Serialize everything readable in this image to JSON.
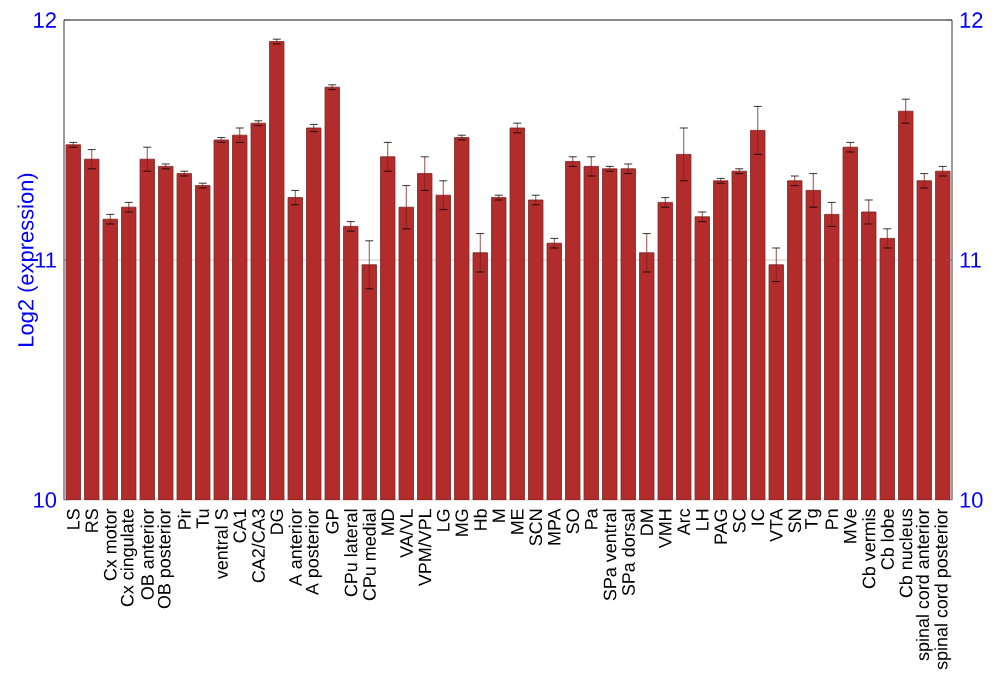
{
  "chart_data": {
    "type": "bar",
    "ylabel": "Log2 (expression)",
    "categories": [
      "LS",
      "RS",
      "Cx motor",
      "Cx cingulate",
      "OB anterior",
      "OB posterior",
      "Pir",
      "Tu",
      "ventral S",
      "CA1",
      "CA2/CA3",
      "DG",
      "A anterior",
      "A posterior",
      "GP",
      "CPu lateral",
      "CPu medial",
      "MD",
      "VA/VL",
      "VPM/VPL",
      "LG",
      "MG",
      "Hb",
      "M",
      "ME",
      "SCN",
      "MPA",
      "SO",
      "Pa",
      "SPa ventral",
      "SPa dorsal",
      "DM",
      "VMH",
      "Arc",
      "LH",
      "PAG",
      "SC",
      "IC",
      "VTA",
      "SN",
      "Tg",
      "Pn",
      "MVe",
      "Cb vermis",
      "Cb lobe",
      "Cb nucleus",
      "spinal cord anterior",
      "spinal cord posterior"
    ],
    "values": [
      11.48,
      11.42,
      11.17,
      11.22,
      11.42,
      11.39,
      11.36,
      11.31,
      11.5,
      11.52,
      11.57,
      11.91,
      11.26,
      11.55,
      11.72,
      11.14,
      10.98,
      11.43,
      11.22,
      11.36,
      11.27,
      11.51,
      11.03,
      11.26,
      11.55,
      11.25,
      11.07,
      11.41,
      11.39,
      11.38,
      11.38,
      11.03,
      11.24,
      11.44,
      11.18,
      11.33,
      11.37,
      11.54,
      10.98,
      11.33,
      11.29,
      11.19,
      11.47,
      11.2,
      11.09,
      11.62,
      11.33,
      11.37
    ],
    "errors": [
      0.01,
      0.04,
      0.02,
      0.02,
      0.05,
      0.01,
      0.01,
      0.01,
      0.01,
      0.03,
      0.01,
      0.01,
      0.03,
      0.015,
      0.01,
      0.02,
      0.1,
      0.06,
      0.09,
      0.07,
      0.06,
      0.01,
      0.08,
      0.01,
      0.02,
      0.02,
      0.02,
      0.02,
      0.04,
      0.01,
      0.02,
      0.08,
      0.02,
      0.11,
      0.02,
      0.01,
      0.01,
      0.1,
      0.07,
      0.02,
      0.07,
      0.05,
      0.02,
      0.05,
      0.04,
      0.05,
      0.03,
      0.02
    ],
    "color": "#b22c2c",
    "ylim": [
      10,
      12
    ],
    "yticks": [
      10,
      11,
      12
    ],
    "y2lim": [
      10,
      12
    ],
    "y2ticks": [
      10,
      11,
      12
    ],
    "grid": "y"
  }
}
